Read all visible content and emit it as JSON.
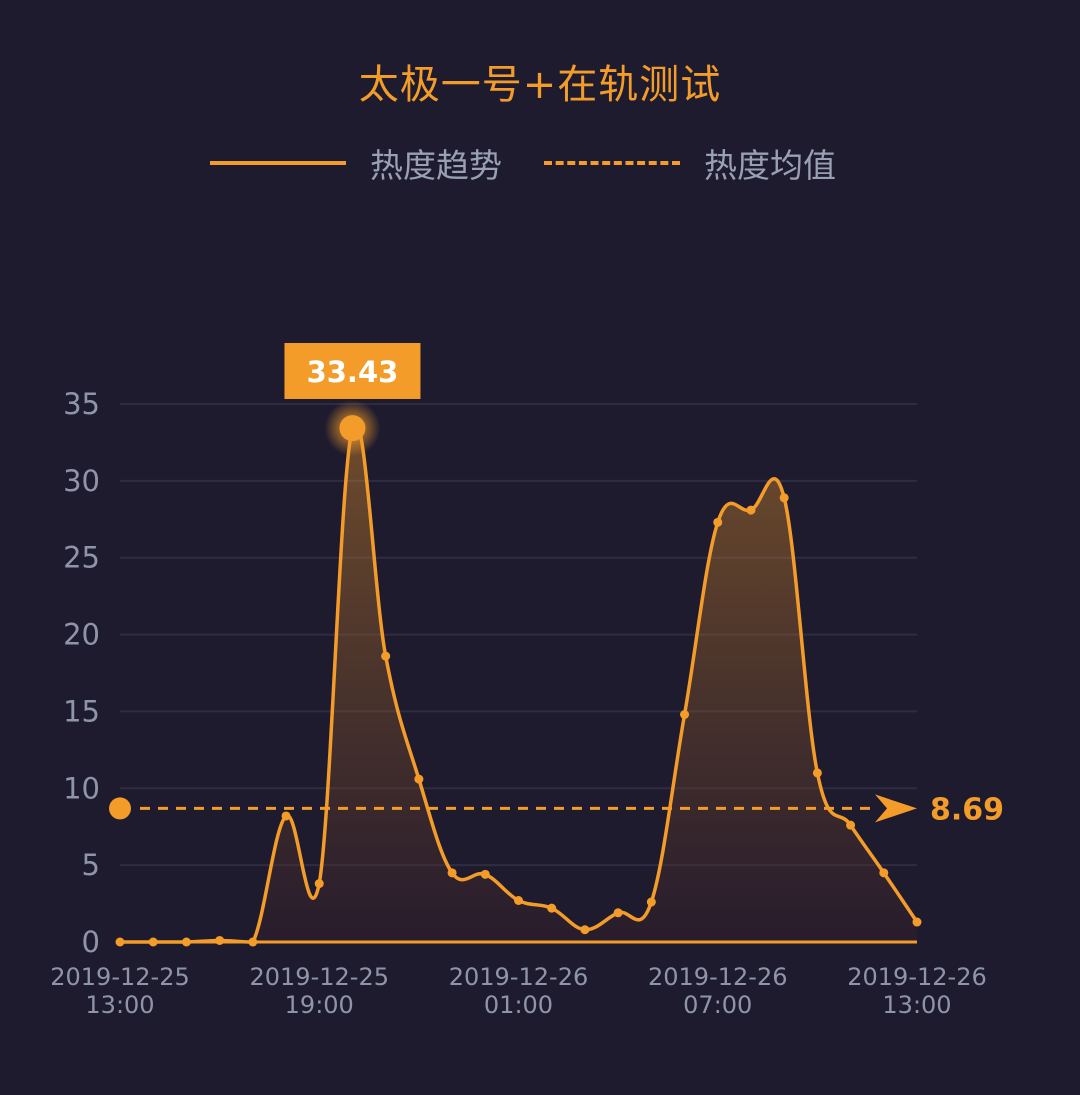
{
  "title": "太极一号+在轨测试",
  "legend": {
    "trend_label": "热度趋势",
    "average_label": "热度均值"
  },
  "colors": {
    "background": "#1e1b2e",
    "accent": "#f39c2a",
    "grid": "#2f2c42",
    "text_muted": "#8f95a8"
  },
  "chart_data": {
    "type": "area",
    "title": "太极一号+在轨测试",
    "xlabel": "",
    "ylabel": "",
    "ylim": [
      0,
      35
    ],
    "yticks": [
      "0",
      "5",
      "10",
      "15",
      "20",
      "25",
      "30",
      "35"
    ],
    "xtick_labels": [
      [
        "2019-12-25",
        "13:00"
      ],
      [
        "2019-12-25",
        "19:00"
      ],
      [
        "2019-12-26",
        "01:00"
      ],
      [
        "2019-12-26",
        "07:00"
      ],
      [
        "2019-12-26",
        "13:00"
      ]
    ],
    "grid": true,
    "legend_position": "top-center",
    "series": [
      {
        "name": "热度趋势",
        "style": "solid-with-area",
        "x": [
          "2019-12-25 13:00",
          "2019-12-25 14:00",
          "2019-12-25 15:00",
          "2019-12-25 16:00",
          "2019-12-25 17:00",
          "2019-12-25 18:00",
          "2019-12-25 19:00",
          "2019-12-25 20:00",
          "2019-12-25 21:00",
          "2019-12-25 22:00",
          "2019-12-25 23:00",
          "2019-12-26 00:00",
          "2019-12-26 01:00",
          "2019-12-26 02:00",
          "2019-12-26 03:00",
          "2019-12-26 04:00",
          "2019-12-26 05:00",
          "2019-12-26 06:00",
          "2019-12-26 07:00",
          "2019-12-26 08:00",
          "2019-12-26 09:00",
          "2019-12-26 10:00",
          "2019-12-26 11:00",
          "2019-12-26 12:00",
          "2019-12-26 13:00"
        ],
        "values": [
          0,
          0,
          0,
          0.1,
          0,
          8.2,
          3.8,
          33.43,
          18.6,
          10.6,
          4.5,
          4.4,
          2.7,
          2.2,
          0.8,
          1.9,
          2.6,
          14.8,
          27.3,
          28.1,
          28.9,
          11.0,
          7.6,
          4.5,
          1.3
        ]
      },
      {
        "name": "热度均值",
        "style": "dashed",
        "value": 8.69
      }
    ],
    "annotations": [
      {
        "type": "max",
        "label": "33.43",
        "value": 33.43,
        "x": "2019-12-25 20:00"
      },
      {
        "type": "average",
        "label": "8.69",
        "value": 8.69
      }
    ]
  }
}
